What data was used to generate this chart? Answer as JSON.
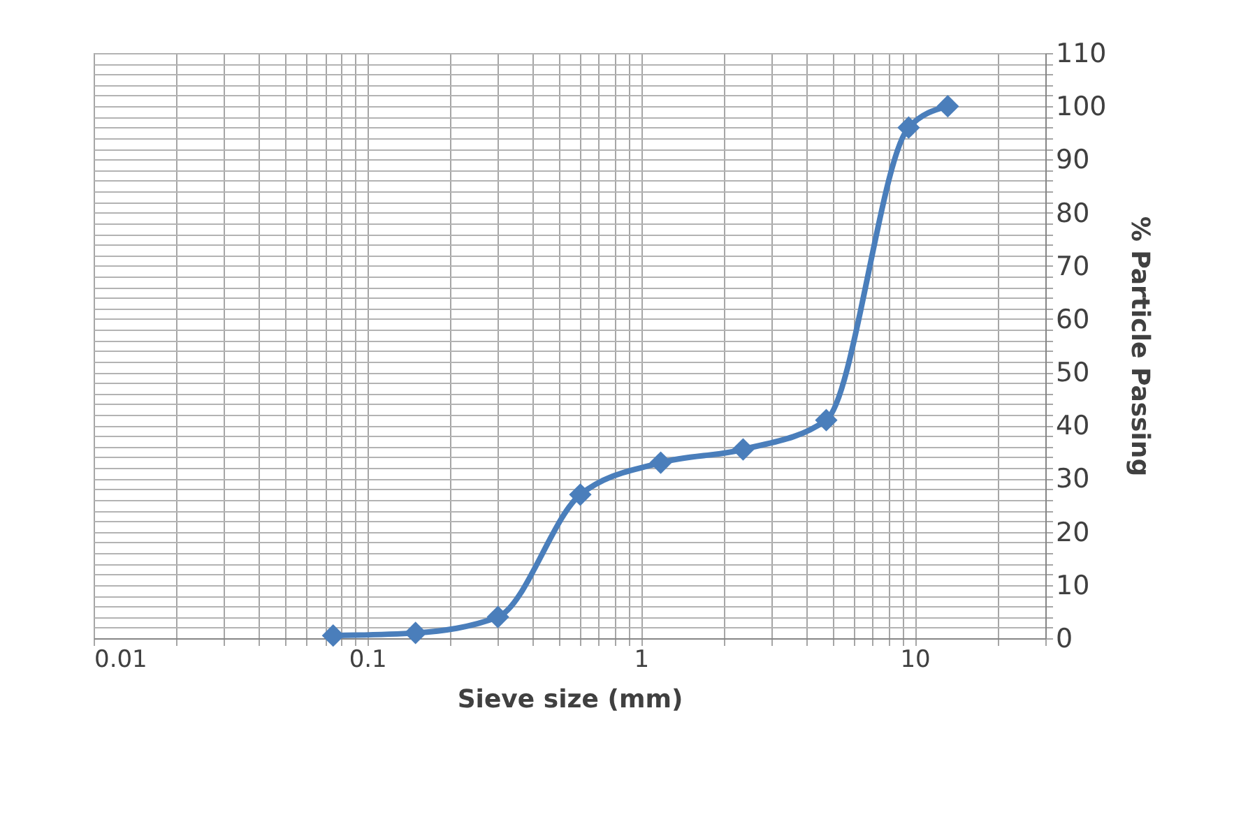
{
  "chart_data": {
    "type": "line",
    "xlabel": "Sieve size (mm)",
    "ylabel": "% Particle Passing",
    "x": [
      0.075,
      0.15,
      0.3,
      0.6,
      1.18,
      2.36,
      4.75,
      9.5,
      13.2
    ],
    "series": [
      {
        "color": "#4a7ebb",
        "values": [
          0.5,
          1,
          4,
          27,
          33,
          35.5,
          41,
          96,
          100
        ]
      }
    ],
    "log": "x",
    "xlim": [
      0.01,
      30
    ],
    "xticks": [
      0.01,
      {
        "value": 0.02,
        "label": null
      },
      {
        "value": 0.03,
        "label": null
      },
      {
        "value": 0.04,
        "label": null
      },
      {
        "value": 0.05,
        "label": null
      },
      {
        "value": 0.06,
        "label": null
      },
      {
        "value": 0.07,
        "label": null
      },
      {
        "value": 0.08,
        "label": null
      },
      {
        "value": 0.09,
        "label": null
      },
      0.1,
      {
        "value": 0.2,
        "label": null
      },
      {
        "value": 0.3,
        "label": null
      },
      {
        "value": 0.4,
        "label": null
      },
      {
        "value": 0.5,
        "label": null
      },
      {
        "value": 0.6,
        "label": null
      },
      {
        "value": 0.7,
        "label": null
      },
      {
        "value": 0.8,
        "label": null
      },
      {
        "value": 0.9,
        "label": null
      },
      1,
      {
        "value": 2,
        "label": null
      },
      {
        "value": 3,
        "label": null
      },
      {
        "value": 4,
        "label": null
      },
      {
        "value": 5,
        "label": null
      },
      {
        "value": 6,
        "label": null
      },
      {
        "value": 7,
        "label": null
      },
      {
        "value": 8,
        "label": null
      },
      {
        "value": 9,
        "label": null
      },
      10,
      {
        "value": 20,
        "label": null
      },
      {
        "value": 30,
        "label": null
      }
    ],
    "ylim": [
      0,
      110
    ],
    "yticks": [
      0,
      {
        "value": 2,
        "label": null
      },
      {
        "value": 4,
        "label": null
      },
      {
        "value": 6,
        "label": null
      },
      {
        "value": 8,
        "label": null
      },
      10,
      {
        "value": 12,
        "label": null
      },
      {
        "value": 14,
        "label": null
      },
      {
        "value": 16,
        "label": null
      },
      {
        "value": 18,
        "label": null
      },
      20,
      {
        "value": 22,
        "label": null
      },
      {
        "value": 24,
        "label": null
      },
      {
        "value": 26,
        "label": null
      },
      {
        "value": 28,
        "label": null
      },
      30,
      {
        "value": 32,
        "label": null
      },
      {
        "value": 34,
        "label": null
      },
      {
        "value": 36,
        "label": null
      },
      {
        "value": 38,
        "label": null
      },
      40,
      {
        "value": 42,
        "label": null
      },
      {
        "value": 44,
        "label": null
      },
      {
        "value": 46,
        "label": null
      },
      {
        "value": 48,
        "label": null
      },
      50,
      {
        "value": 52,
        "label": null
      },
      {
        "value": 54,
        "label": null
      },
      {
        "value": 56,
        "label": null
      },
      {
        "value": 58,
        "label": null
      },
      60,
      {
        "value": 62,
        "label": null
      },
      {
        "value": 64,
        "label": null
      },
      {
        "value": 66,
        "label": null
      },
      {
        "value": 68,
        "label": null
      },
      70,
      {
        "value": 72,
        "label": null
      },
      {
        "value": 74,
        "label": null
      },
      {
        "value": 76,
        "label": null
      },
      {
        "value": 78,
        "label": null
      },
      80,
      {
        "value": 82,
        "label": null
      },
      {
        "value": 84,
        "label": null
      },
      {
        "value": 86,
        "label": null
      },
      {
        "value": 88,
        "label": null
      },
      90,
      {
        "value": 92,
        "label": null
      },
      {
        "value": 94,
        "label": null
      },
      {
        "value": 96,
        "label": null
      },
      {
        "value": 98,
        "label": null
      },
      100,
      {
        "value": 102,
        "label": null
      },
      {
        "value": 104,
        "label": null
      },
      {
        "value": 106,
        "label": null
      },
      {
        "value": 108,
        "label": null
      },
      110
    ],
    "grid": true,
    "marker": "diamond",
    "line_style": "solid",
    "legend": false
  }
}
